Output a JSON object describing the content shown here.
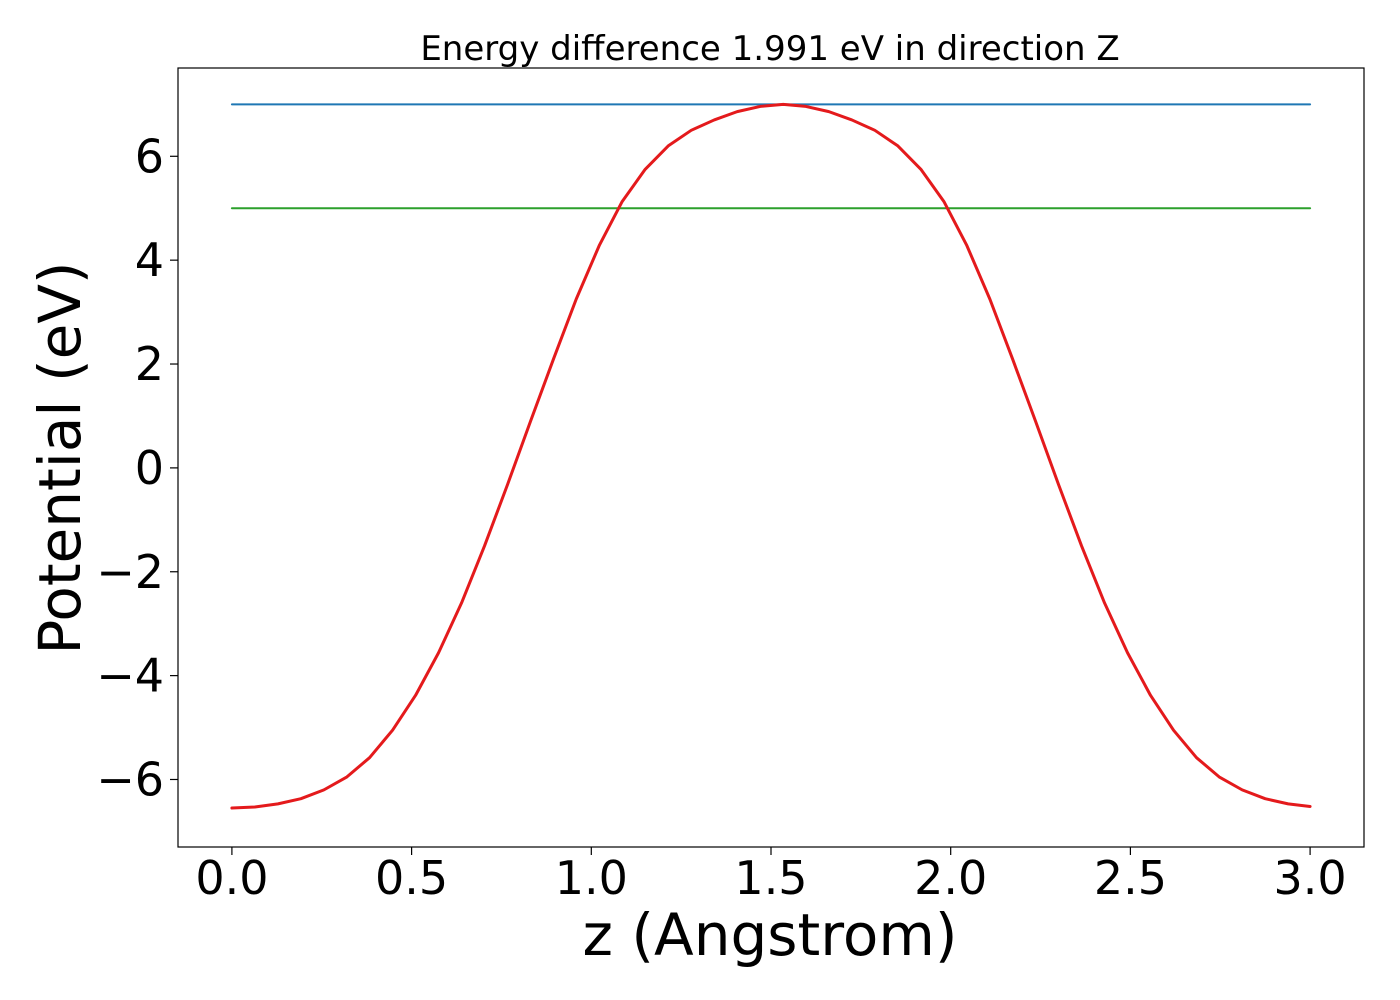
{
  "chart_data": {
    "type": "line",
    "title": "Energy difference 1.991 eV in direction Z",
    "xlabel": "z (Angstrom)",
    "ylabel": "Potential (eV)",
    "xlim": [
      -0.15,
      3.15
    ],
    "ylim": [
      -7.3,
      7.7
    ],
    "xticks": [
      0.0,
      0.5,
      1.0,
      1.5,
      2.0,
      2.5,
      3.0
    ],
    "xtick_labels": [
      "0.0",
      "0.5",
      "1.0",
      "1.5",
      "2.0",
      "2.5",
      "3.0"
    ],
    "yticks": [
      -6,
      -4,
      -2,
      0,
      2,
      4,
      6
    ],
    "ytick_labels": [
      "−6",
      "−4",
      "−2",
      "0",
      "2",
      "4",
      "6"
    ],
    "grid": false,
    "legend": false,
    "series": [
      {
        "color": "#1f77b4",
        "x": [
          0.0,
          3.0
        ],
        "y": [
          7.0,
          7.0
        ]
      },
      {
        "color": "#2ca02c",
        "x": [
          0.0,
          3.0
        ],
        "y": [
          5.0,
          5.0
        ]
      },
      {
        "color": "#e41a1c",
        "x": [
          0.0,
          0.064,
          0.128,
          0.192,
          0.256,
          0.32,
          0.383,
          0.447,
          0.511,
          0.575,
          0.639,
          0.703,
          0.767,
          0.831,
          0.895,
          0.958,
          1.022,
          1.086,
          1.15,
          1.214,
          1.278,
          1.342,
          1.406,
          1.47,
          1.534,
          1.597,
          1.661,
          1.725,
          1.789,
          1.853,
          1.917,
          1.981,
          2.045,
          2.109,
          2.172,
          2.236,
          2.3,
          2.364,
          2.428,
          2.492,
          2.556,
          2.62,
          2.684,
          2.747,
          2.811,
          2.875,
          2.939,
          3.0
        ],
        "y": [
          -6.55,
          -6.53,
          -6.47,
          -6.37,
          -6.2,
          -5.95,
          -5.58,
          -5.05,
          -4.38,
          -3.56,
          -2.6,
          -1.5,
          -0.32,
          0.9,
          2.1,
          3.25,
          4.28,
          5.13,
          5.75,
          6.2,
          6.5,
          6.7,
          6.86,
          6.96,
          7.0,
          6.96,
          6.86,
          6.7,
          6.5,
          6.2,
          5.75,
          5.13,
          4.28,
          3.25,
          2.1,
          0.9,
          -0.32,
          -1.5,
          -2.6,
          -3.56,
          -4.38,
          -5.05,
          -5.58,
          -5.95,
          -6.2,
          -6.37,
          -6.47,
          -6.52
        ]
      }
    ]
  }
}
